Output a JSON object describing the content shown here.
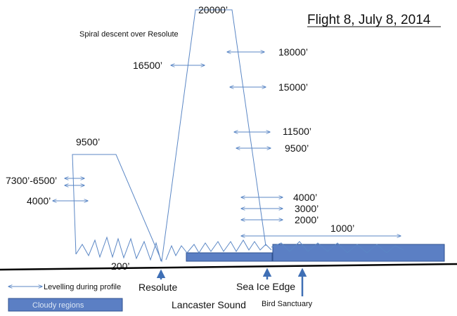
{
  "title": "Flight 8, July 8, 2014",
  "spiral_note": "Spiral descent over Resolute",
  "altitude_labels": [
    "20000’",
    "18000’",
    "16500’",
    "15000’",
    "11500’",
    "9500’",
    "9500’",
    "7300’-6500’",
    "4000’",
    "4000’",
    "3000’",
    "2000’",
    "1000’",
    "200’"
  ],
  "places": {
    "resolute": "Resolute",
    "sea_ice_edge": "Sea Ice Edge",
    "lancaster_sound": "Lancaster Sound",
    "bird_sanctuary": "Bird Sanctuary"
  },
  "legend": {
    "levelling": "Levelling during profile",
    "cloudy": "Cloudy regions"
  },
  "colors": {
    "flight_path": "#5b87c5",
    "cloud_fill": "#5b7fc4",
    "cloud_stroke": "#2f528f",
    "ground": "#000000"
  }
}
